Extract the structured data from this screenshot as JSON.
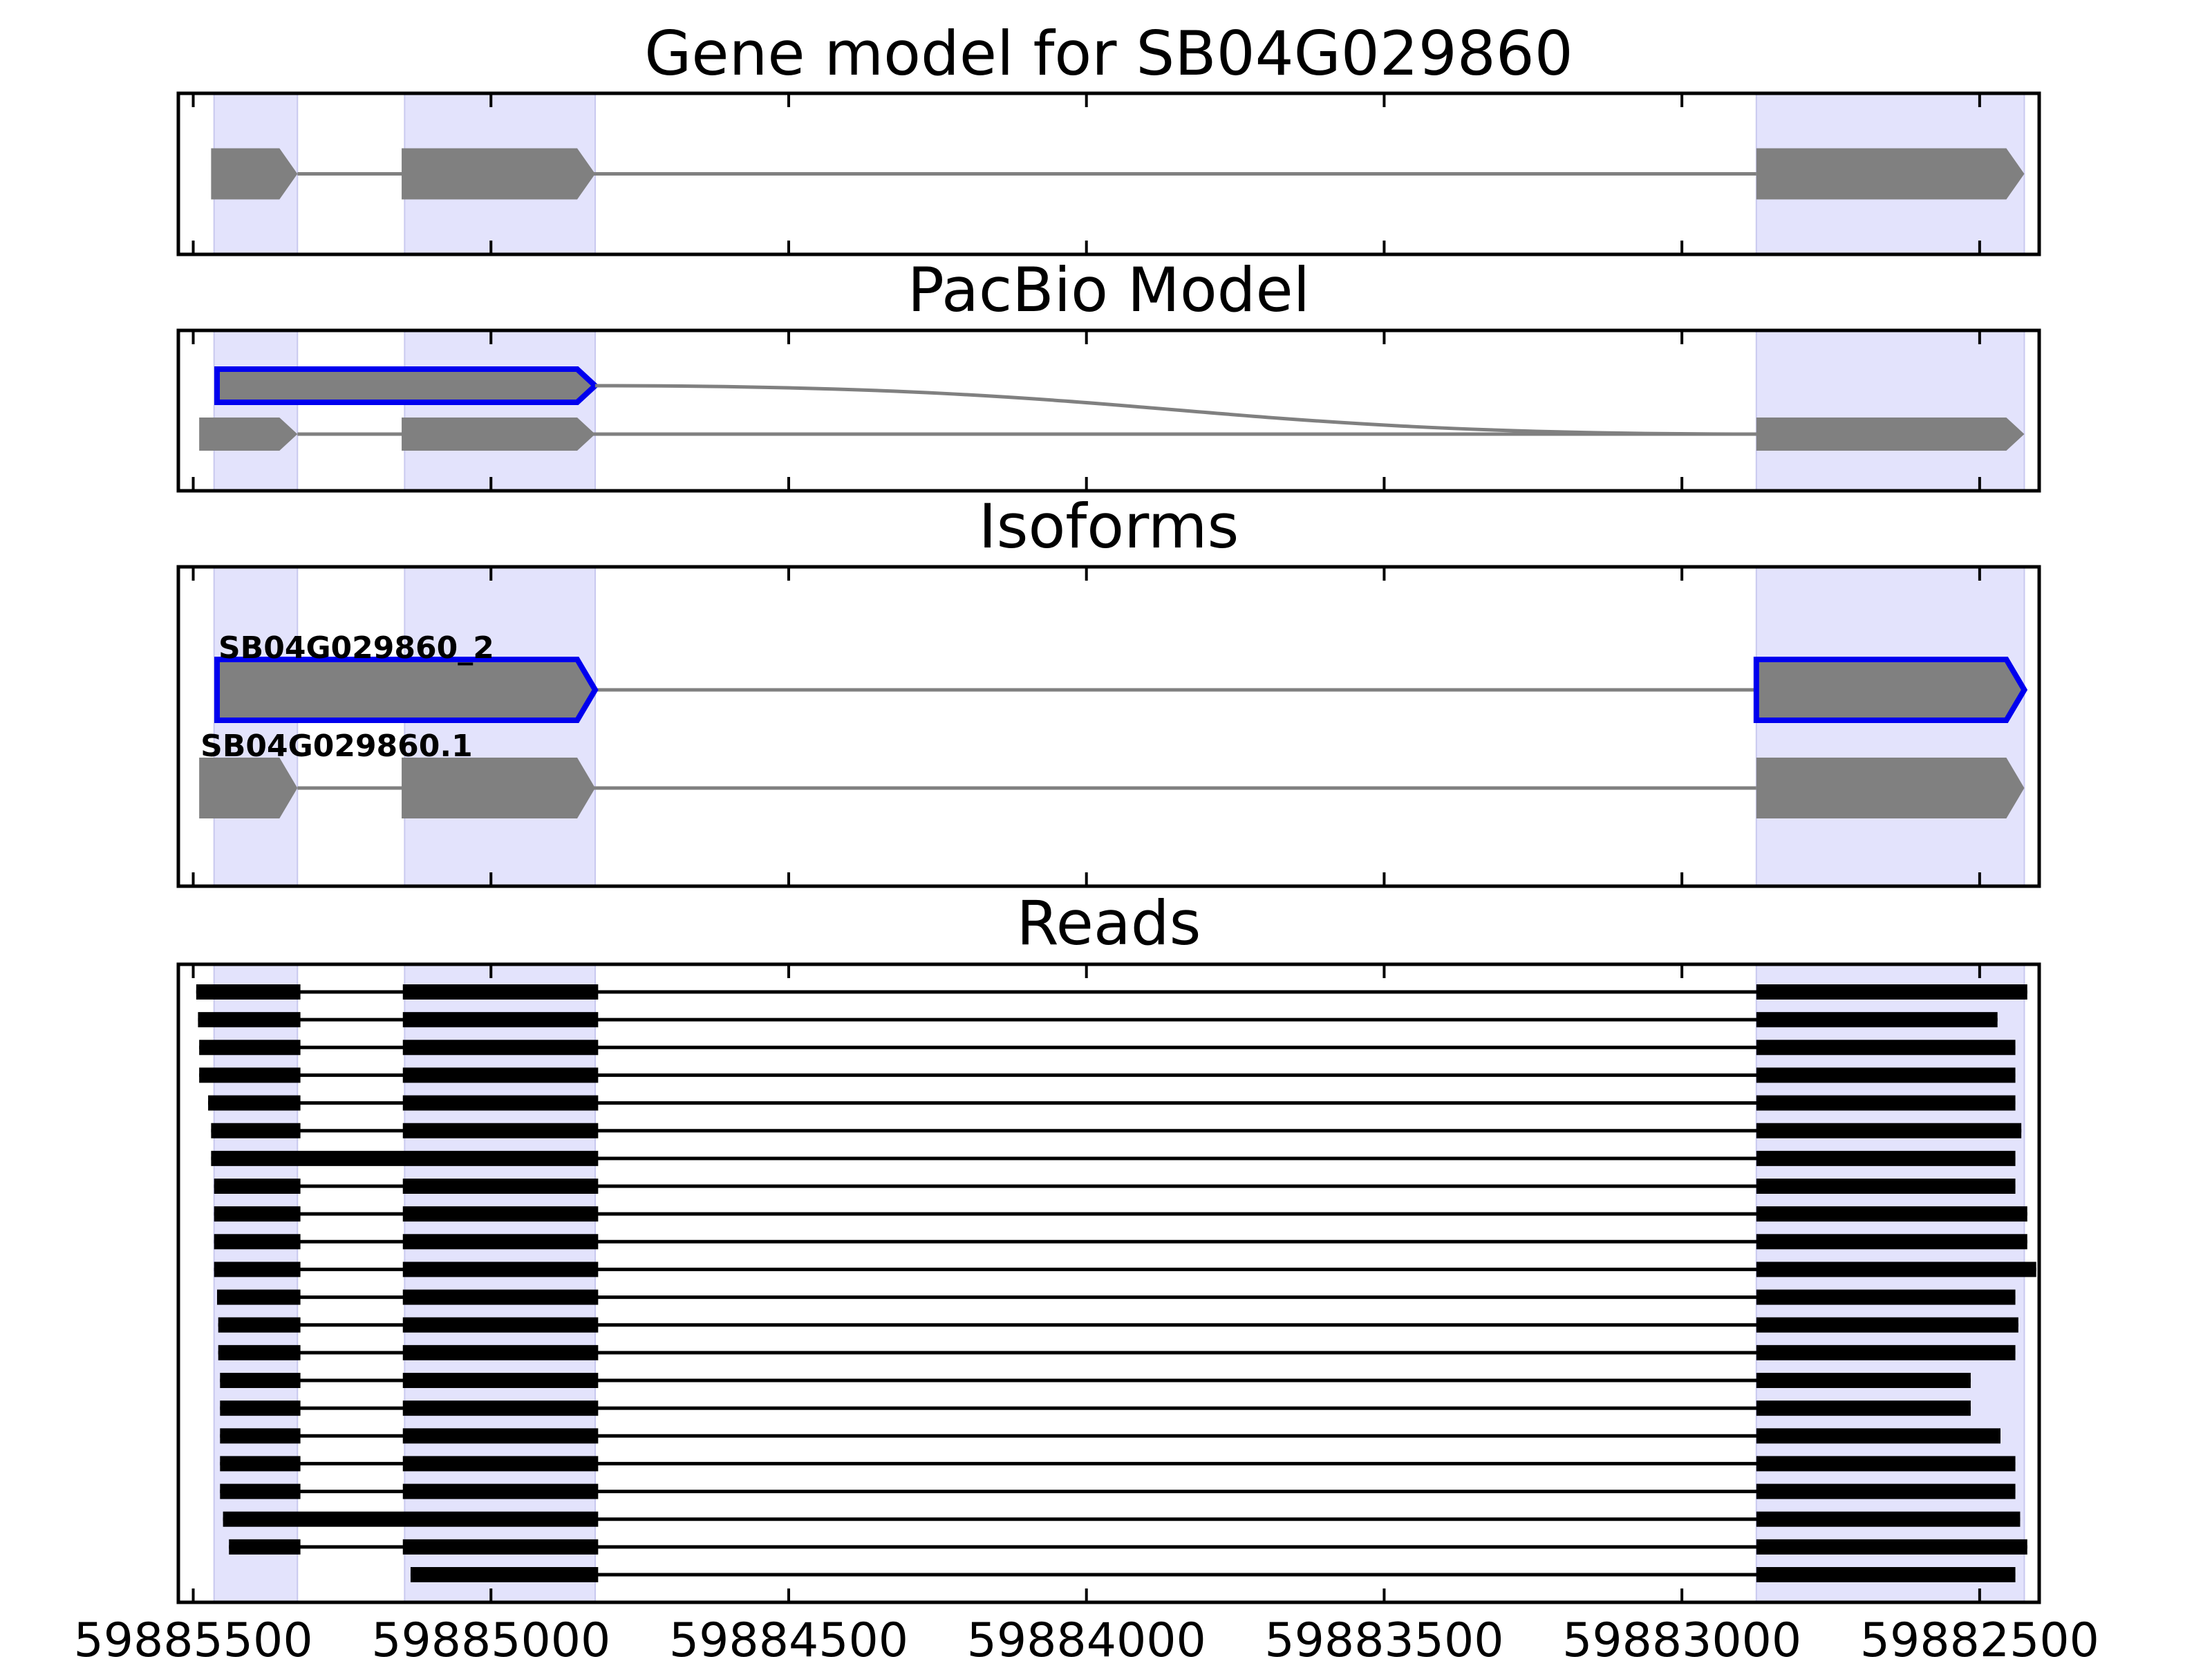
{
  "chart_data": {
    "type": "gene-model",
    "x_axis": {
      "reversed": true,
      "range": [
        59885525,
        59882400
      ],
      "ticks": [
        59885500,
        59885000,
        59884500,
        59884000,
        59883500,
        59883000,
        59882500
      ],
      "tick_labels": [
        "59885500",
        "59885000",
        "59884500",
        "59884000",
        "59883500",
        "59883000",
        "59882500"
      ]
    },
    "highlight_color": "#e3e3fc",
    "feature_color": "#808080",
    "selected_color": "#0000ee",
    "exon_regions": [
      [
        59885465,
        59885325
      ],
      [
        59885145,
        59884825
      ],
      [
        59882875,
        59882425
      ]
    ],
    "panels": [
      {
        "title": "Gene model for SB04G029860",
        "models": [
          {
            "exons": [
              [
                59885470,
                59885325
              ],
              [
                59885150,
                59884825
              ],
              [
                59882875,
                59882425
              ]
            ],
            "strand": "-",
            "selected": false
          }
        ]
      },
      {
        "title": "PacBio Model",
        "models": [
          {
            "exons": [
              [
                59885460,
                59884825
              ]
            ],
            "strand": "-",
            "selected": true,
            "junction_to": 59882875
          },
          {
            "exons": [
              [
                59885490,
                59885325
              ],
              [
                59885150,
                59884825
              ],
              [
                59882875,
                59882425
              ]
            ],
            "strand": "-",
            "selected": false
          }
        ]
      },
      {
        "title": "Isoforms",
        "models": [
          {
            "label": "SB04G029860_2",
            "exons": [
              [
                59885460,
                59884825
              ],
              [
                59882875,
                59882425
              ]
            ],
            "strand": "-",
            "selected": true
          },
          {
            "label": "SB04G029860.1",
            "exons": [
              [
                59885490,
                59885325
              ],
              [
                59885150,
                59884825
              ],
              [
                59882875,
                59882425
              ]
            ],
            "strand": "-",
            "selected": false
          }
        ]
      },
      {
        "title": "Reads",
        "reads": [
          [
            [
              59885495,
              59885320
            ],
            [
              59885148,
              59884820
            ],
            [
              59882875,
              59882420
            ]
          ],
          [
            [
              59885492,
              59885320
            ],
            [
              59885148,
              59884820
            ],
            [
              59882875,
              59882470
            ]
          ],
          [
            [
              59885490,
              59885320
            ],
            [
              59885148,
              59884820
            ],
            [
              59882875,
              59882440
            ]
          ],
          [
            [
              59885490,
              59885320
            ],
            [
              59885148,
              59884820
            ],
            [
              59882875,
              59882440
            ]
          ],
          [
            [
              59885475,
              59885320
            ],
            [
              59885148,
              59884820
            ],
            [
              59882875,
              59882440
            ]
          ],
          [
            [
              59885470,
              59885320
            ],
            [
              59885148,
              59884820
            ],
            [
              59882875,
              59882430
            ]
          ],
          [
            [
              59885470,
              59884820
            ],
            [
              59882875,
              59882440
            ]
          ],
          [
            [
              59885465,
              59885320
            ],
            [
              59885148,
              59884820
            ],
            [
              59882875,
              59882440
            ]
          ],
          [
            [
              59885465,
              59885320
            ],
            [
              59885148,
              59884820
            ],
            [
              59882875,
              59882420
            ]
          ],
          [
            [
              59885465,
              59885320
            ],
            [
              59885148,
              59884820
            ],
            [
              59882875,
              59882420
            ]
          ],
          [
            [
              59885465,
              59885320
            ],
            [
              59885148,
              59884820
            ],
            [
              59882875,
              59882405
            ]
          ],
          [
            [
              59885460,
              59885320
            ],
            [
              59885148,
              59884820
            ],
            [
              59882875,
              59882440
            ]
          ],
          [
            [
              59885458,
              59885320
            ],
            [
              59885148,
              59884820
            ],
            [
              59882875,
              59882435
            ]
          ],
          [
            [
              59885458,
              59885320
            ],
            [
              59885148,
              59884820
            ],
            [
              59882875,
              59882440
            ]
          ],
          [
            [
              59885455,
              59885320
            ],
            [
              59885148,
              59884820
            ],
            [
              59882875,
              59882515
            ]
          ],
          [
            [
              59885455,
              59885320
            ],
            [
              59885148,
              59884820
            ],
            [
              59882875,
              59882515
            ]
          ],
          [
            [
              59885455,
              59885320
            ],
            [
              59885148,
              59884820
            ],
            [
              59882875,
              59882465
            ]
          ],
          [
            [
              59885455,
              59885320
            ],
            [
              59885148,
              59884820
            ],
            [
              59882875,
              59882440
            ]
          ],
          [
            [
              59885455,
              59885320
            ],
            [
              59885148,
              59884820
            ],
            [
              59882875,
              59882440
            ]
          ],
          [
            [
              59885450,
              59884820
            ],
            [
              59882875,
              59882432
            ]
          ],
          [
            [
              59885440,
              59885320
            ],
            [
              59885148,
              59884820
            ],
            [
              59882875,
              59882420
            ]
          ],
          [
            [
              59885135,
              59884820
            ],
            [
              59882875,
              59882440
            ]
          ]
        ]
      }
    ]
  }
}
